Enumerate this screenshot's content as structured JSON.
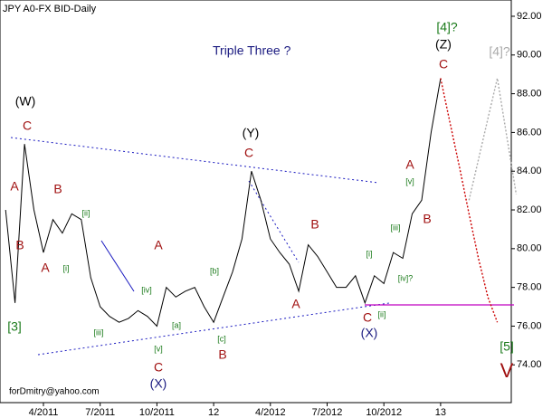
{
  "chart_data": {
    "type": "line",
    "title": "JPY A0-FX BID-Daily",
    "subtitle": "Triple Three ?",
    "footer": "forDmitry@yahoo.com",
    "categories": [
      null,
      null,
      null,
      null,
      "4/2011",
      null,
      null,
      null,
      null,
      null,
      "7/2011",
      null,
      null,
      null,
      null,
      null,
      "10/2011",
      null,
      null,
      null,
      null,
      null,
      "12",
      null,
      null,
      null,
      null,
      null,
      "4/2012",
      null,
      null,
      null,
      null,
      null,
      "7/2012",
      null,
      null,
      null,
      null,
      null,
      "10/2012",
      null,
      null,
      null,
      null,
      null,
      "13",
      null,
      null,
      null,
      null,
      null,
      null,
      null,
      null
    ],
    "series": [
      {
        "color": "#000000",
        "values": [
          82.0,
          77.2,
          85.4,
          82.0,
          79.8,
          81.5,
          80.8,
          81.8,
          81.5,
          78.5,
          77.0,
          76.5,
          76.2,
          76.4,
          76.8,
          76.5,
          76.0,
          78.0,
          77.5,
          77.8,
          78.0,
          77.0,
          76.2,
          77.5,
          78.8,
          80.5,
          84.0,
          82.5,
          80.5,
          79.8,
          79.2,
          77.8,
          80.2,
          79.6,
          78.8,
          78.0,
          78.0,
          78.6,
          77.2,
          78.6,
          78.2,
          79.8,
          79.5,
          81.8,
          82.5,
          86.0,
          88.8,
          null,
          null,
          null,
          null,
          null,
          null,
          null,
          null
        ]
      },
      {
        "color": "#cc0000",
        "values": [
          null,
          null,
          null,
          null,
          null,
          null,
          null,
          null,
          null,
          null,
          null,
          null,
          null,
          null,
          null,
          null,
          null,
          null,
          null,
          null,
          null,
          null,
          null,
          null,
          null,
          null,
          null,
          null,
          null,
          null,
          null,
          null,
          null,
          null,
          null,
          null,
          null,
          null,
          null,
          null,
          null,
          null,
          null,
          null,
          null,
          null,
          88.8,
          86.5,
          84.2,
          81.8,
          79.5,
          77.5,
          76.2,
          null,
          null
        ]
      },
      {
        "color": "#aaaaaa",
        "values": [
          null,
          null,
          null,
          null,
          null,
          null,
          null,
          null,
          null,
          null,
          null,
          null,
          null,
          null,
          null,
          null,
          null,
          null,
          null,
          null,
          null,
          null,
          null,
          null,
          null,
          null,
          null,
          null,
          null,
          null,
          null,
          null,
          null,
          null,
          null,
          null,
          null,
          null,
          null,
          null,
          null,
          null,
          null,
          null,
          null,
          null,
          null,
          null,
          null,
          82.5,
          84.6,
          86.7,
          88.8,
          85.8,
          82.8
        ]
      }
    ],
    "ylim": [
      72.05,
      92.84
    ],
    "yticks": [
      {
        "value": 92,
        "label": "92.00"
      },
      {
        "value": 90,
        "label": "90.00"
      },
      {
        "value": 88,
        "label": "88.00"
      },
      {
        "value": 86,
        "label": "86.00"
      },
      {
        "value": 84,
        "label": "84.00"
      },
      {
        "value": 82,
        "label": "82.00"
      },
      {
        "value": 80,
        "label": "80.00"
      },
      {
        "value": 78,
        "label": "78.00"
      },
      {
        "value": 76,
        "label": "76.00"
      },
      {
        "value": 74,
        "label": "74.00"
      }
    ],
    "annotations": [
      {
        "text": "(W)",
        "color": "#000000"
      },
      {
        "text": "C",
        "color": "#a01010"
      },
      {
        "text": "A",
        "color": "#a01010"
      },
      {
        "text": "B",
        "color": "#a01010"
      },
      {
        "text": "B",
        "color": "#a01010"
      },
      {
        "text": "A",
        "color": "#a01010"
      },
      {
        "text": "[ii]",
        "color": "#1a7a1a"
      },
      {
        "text": "[i]",
        "color": "#1a7a1a"
      },
      {
        "text": "[3]",
        "color": "#1a7a1a"
      },
      {
        "text": "[iii]",
        "color": "#1a7a1a"
      },
      {
        "text": "[iv]",
        "color": "#1a7a1a"
      },
      {
        "text": "[v]",
        "color": "#1a7a1a"
      },
      {
        "text": "[a]",
        "color": "#1a7a1a"
      },
      {
        "text": "[b]",
        "color": "#1a7a1a"
      },
      {
        "text": "[c]",
        "color": "#1a7a1a"
      },
      {
        "text": "A",
        "color": "#a01010"
      },
      {
        "text": "C",
        "color": "#a01010"
      },
      {
        "text": "(X)",
        "color": "#1a1a80"
      },
      {
        "text": "B",
        "color": "#a01010"
      },
      {
        "text": "(Y)",
        "color": "#000000"
      },
      {
        "text": "C",
        "color": "#a01010"
      },
      {
        "text": "B",
        "color": "#a01010"
      },
      {
        "text": "A",
        "color": "#a01010"
      },
      {
        "text": "[i]",
        "color": "#1a7a1a"
      },
      {
        "text": "[iii]",
        "color": "#1a7a1a"
      },
      {
        "text": "[iv]?",
        "color": "#1a7a1a"
      },
      {
        "text": "[ii]",
        "color": "#1a7a1a"
      },
      {
        "text": "C",
        "color": "#a01010"
      },
      {
        "text": "(X)",
        "color": "#1a1a80"
      },
      {
        "text": "A",
        "color": "#a01010"
      },
      {
        "text": "[v]",
        "color": "#1a7a1a"
      },
      {
        "text": "B",
        "color": "#a01010"
      },
      {
        "text": "C",
        "color": "#a01010"
      },
      {
        "text": "(Z)",
        "color": "#000000"
      },
      {
        "text": "[4]?",
        "color": "#1a7a1a"
      },
      {
        "text": "[4]?",
        "color": "#aaaaaa"
      },
      {
        "text": "[5]",
        "color": "#1a7a1a"
      },
      {
        "text": "V",
        "color": "#a01010"
      }
    ]
  }
}
